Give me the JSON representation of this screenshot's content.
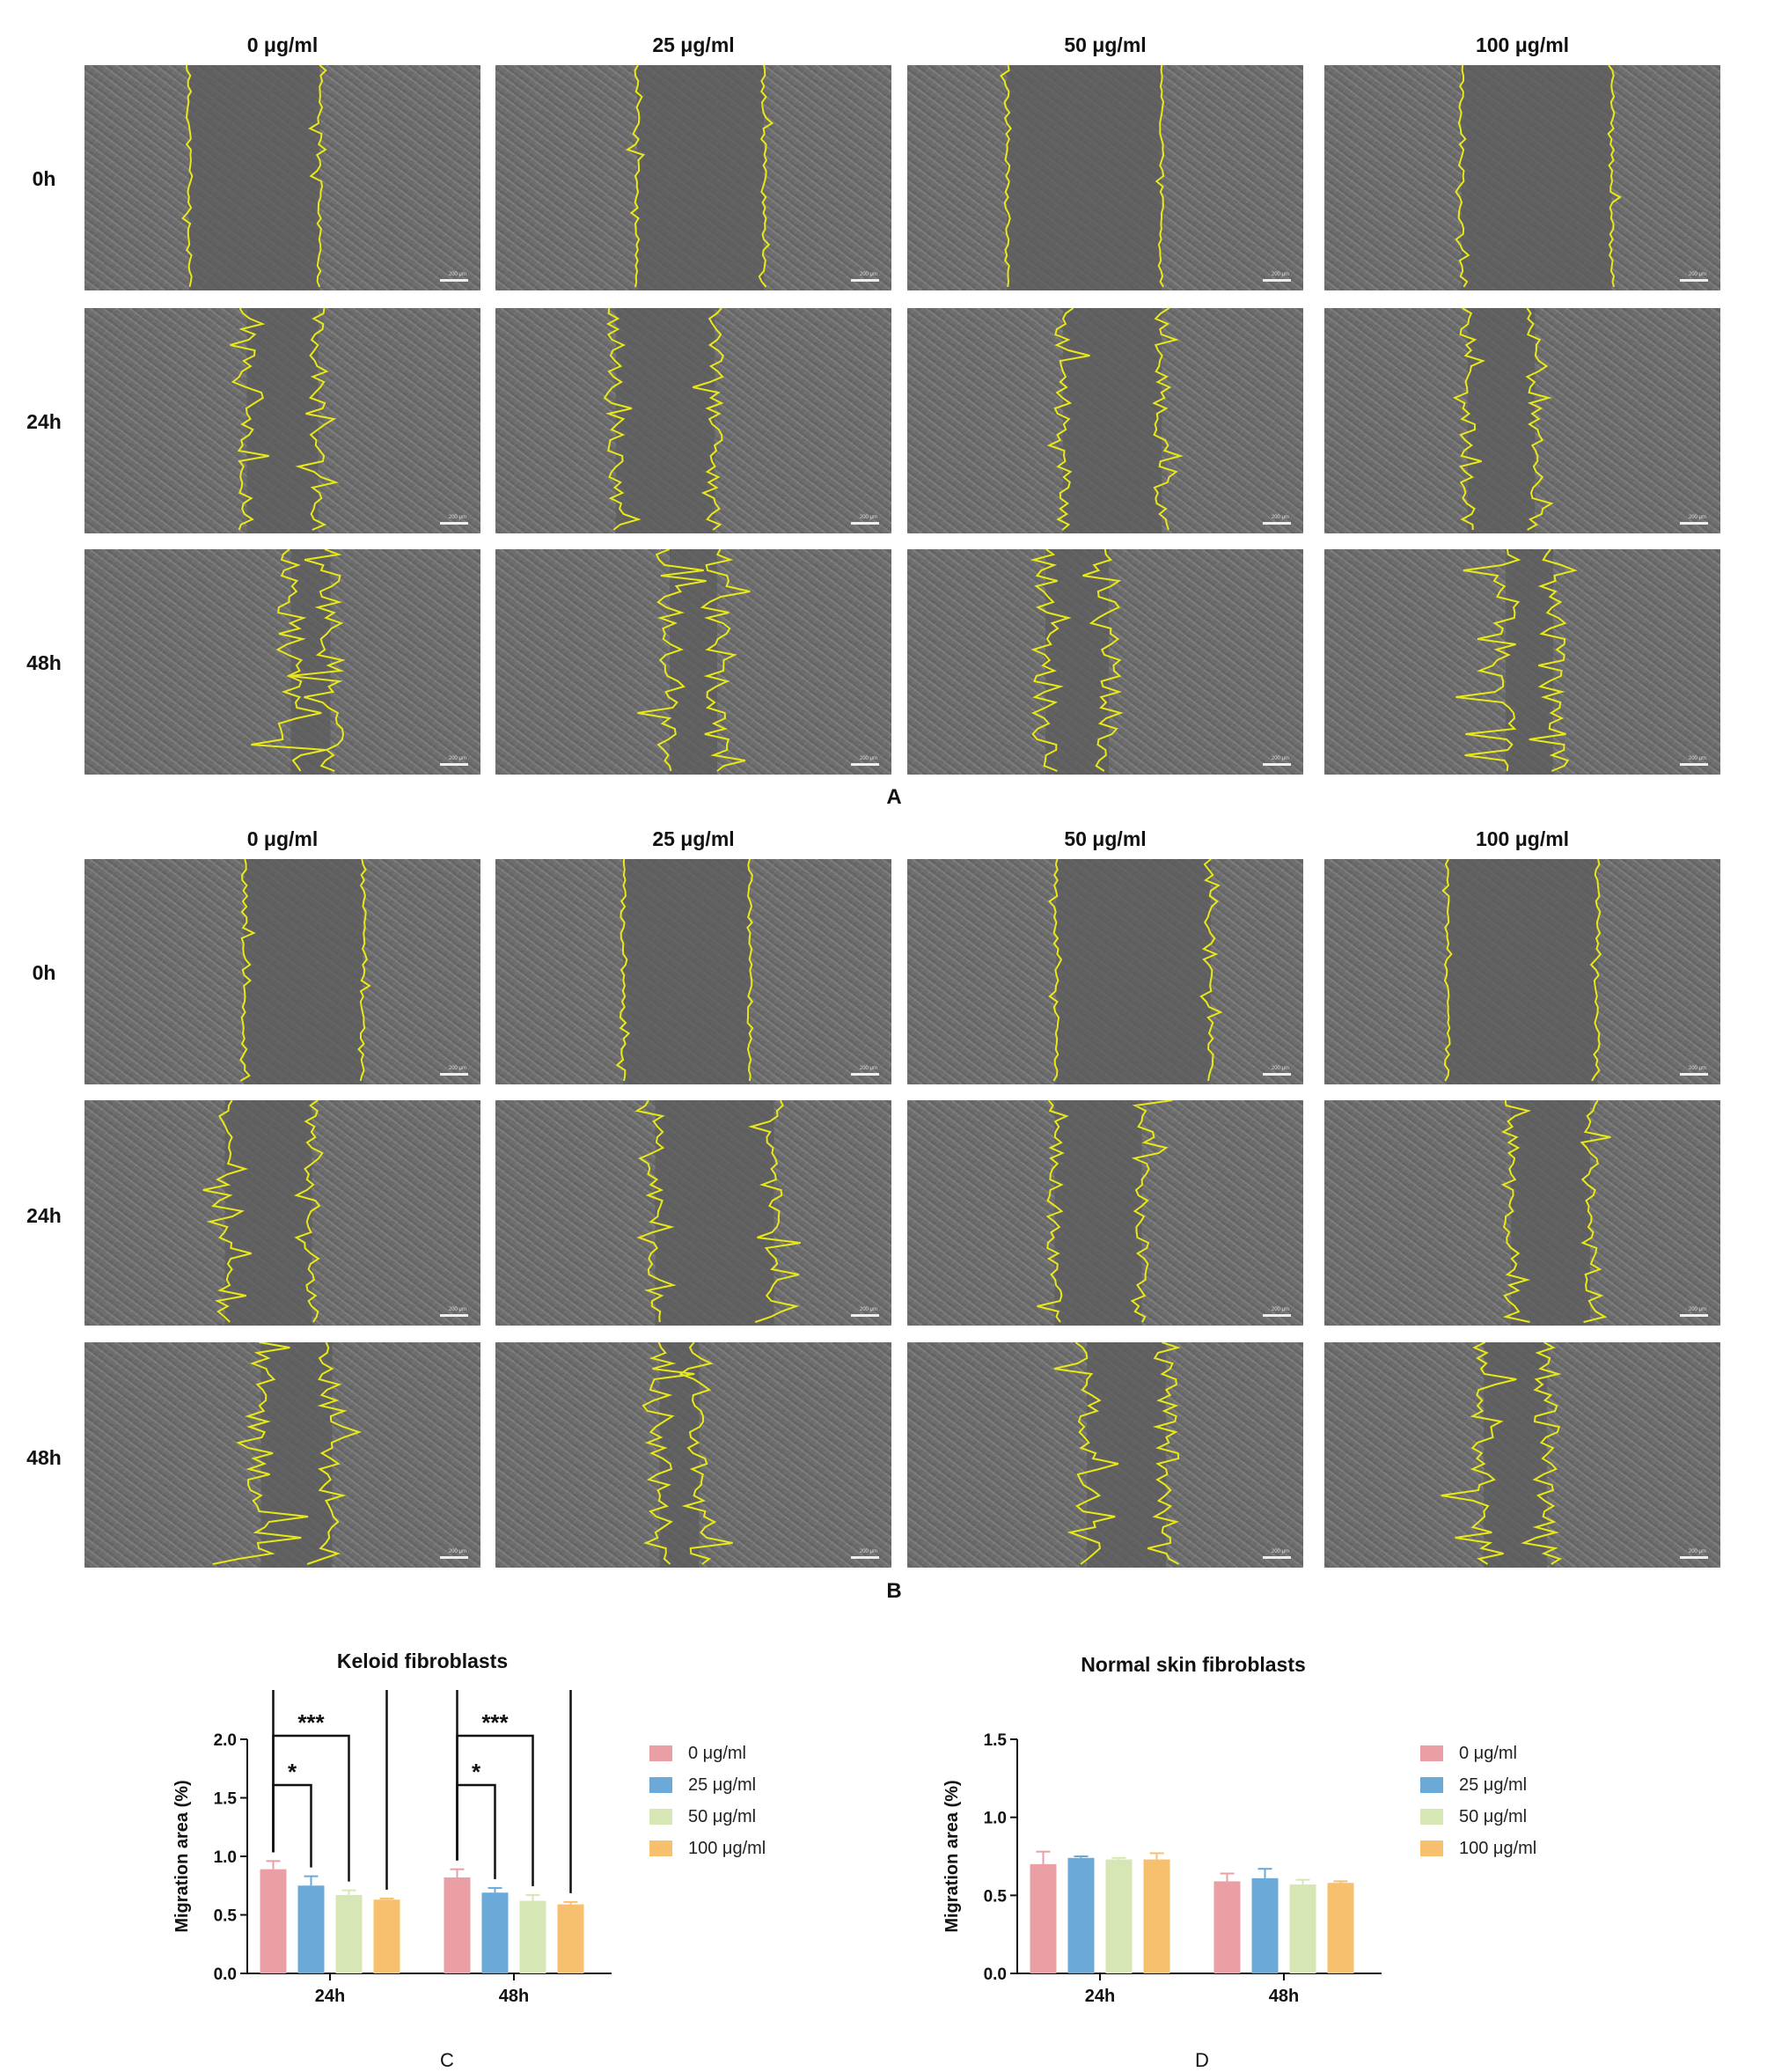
{
  "figure": {
    "column_headers": [
      "0 μg/ml",
      "25 μg/ml",
      "50 μg/ml",
      "100 μg/ml"
    ],
    "row_headers": [
      "0h",
      "24h",
      "48h"
    ],
    "panel_a_label": "A",
    "panel_b_label": "B",
    "panel_c_label": "C",
    "panel_d_label": "D",
    "scale_bar_text": "200 μm",
    "image_tone": "#6d6d6d",
    "outline_color": "#e8e81a"
  },
  "wound_gaps": {
    "description_note": "",
    "A": [
      [
        0.33,
        0.32,
        0.39,
        0.38
      ],
      [
        0.18,
        0.25,
        0.25,
        0.17
      ],
      [
        0.1,
        0.12,
        0.16,
        0.12
      ]
    ],
    "B": [
      [
        0.3,
        0.32,
        0.39,
        0.38
      ],
      [
        0.22,
        0.3,
        0.22,
        0.2
      ],
      [
        0.18,
        0.1,
        0.2,
        0.16
      ]
    ]
  },
  "legend": {
    "items": [
      {
        "label": "0 μg/ml",
        "color": "#ea9fa4"
      },
      {
        "label": "25 μg/ml",
        "color": "#6aa9d8"
      },
      {
        "label": "50 μg/ml",
        "color": "#d6e6b5"
      },
      {
        "label": "100 μg/ml",
        "color": "#f7c06e"
      }
    ]
  },
  "chart_data": [
    {
      "type": "bar",
      "title": "Keloid fibroblasts",
      "ylabel": "Migration area (%)",
      "xlabel": "",
      "categories": [
        "24h",
        "48h"
      ],
      "ylim": [
        0,
        2.0
      ],
      "yticks": [
        0.0,
        0.5,
        1.0,
        1.5,
        2.0
      ],
      "ytick_labels": [
        "0.0",
        "0.5",
        "1.0",
        "1.5",
        "2.0"
      ],
      "series": [
        {
          "name": "0 μg/ml",
          "values": [
            0.89,
            0.82
          ],
          "errors": [
            0.07,
            0.07
          ],
          "color": "#ea9fa4"
        },
        {
          "name": "25 μg/ml",
          "values": [
            0.75,
            0.69
          ],
          "errors": [
            0.08,
            0.04
          ],
          "color": "#6aa9d8"
        },
        {
          "name": "50 μg/ml",
          "values": [
            0.67,
            0.62
          ],
          "errors": [
            0.04,
            0.05
          ],
          "color": "#d6e6b5"
        },
        {
          "name": "100 μg/ml",
          "values": [
            0.63,
            0.59
          ],
          "errors": [
            0.01,
            0.02
          ],
          "color": "#f7c06e"
        }
      ],
      "significance": [
        {
          "category": "24h",
          "from_series": 0,
          "to_series": 1,
          "label": "*"
        },
        {
          "category": "24h",
          "from_series": 0,
          "to_series": 2,
          "label": "***"
        },
        {
          "category": "24h",
          "from_series": 0,
          "to_series": 3,
          "label": "****"
        },
        {
          "category": "48h",
          "from_series": 0,
          "to_series": 1,
          "label": "*"
        },
        {
          "category": "48h",
          "from_series": 0,
          "to_series": 2,
          "label": "***"
        },
        {
          "category": "48h",
          "from_series": 0,
          "to_series": 3,
          "label": "***"
        }
      ],
      "legend_position": "right",
      "grid": false
    },
    {
      "type": "bar",
      "title": "Normal skin fibroblasts",
      "ylabel": "Migration area (%)",
      "xlabel": "",
      "categories": [
        "24h",
        "48h"
      ],
      "ylim": [
        0,
        1.5
      ],
      "yticks": [
        0.0,
        0.5,
        1.0,
        1.5
      ],
      "ytick_labels": [
        "0.0",
        "0.5",
        "1.0",
        "1.5"
      ],
      "series": [
        {
          "name": "0 μg/ml",
          "values": [
            0.7,
            0.59
          ],
          "errors": [
            0.08,
            0.05
          ],
          "color": "#ea9fa4"
        },
        {
          "name": "25 μg/ml",
          "values": [
            0.74,
            0.61
          ],
          "errors": [
            0.01,
            0.06
          ],
          "color": "#6aa9d8"
        },
        {
          "name": "50 μg/ml",
          "values": [
            0.73,
            0.57
          ],
          "errors": [
            0.01,
            0.03
          ],
          "color": "#d6e6b5"
        },
        {
          "name": "100 μg/ml",
          "values": [
            0.73,
            0.58
          ],
          "errors": [
            0.04,
            0.01
          ],
          "color": "#f7c06e"
        }
      ],
      "significance": [],
      "legend_position": "right",
      "grid": false
    }
  ]
}
